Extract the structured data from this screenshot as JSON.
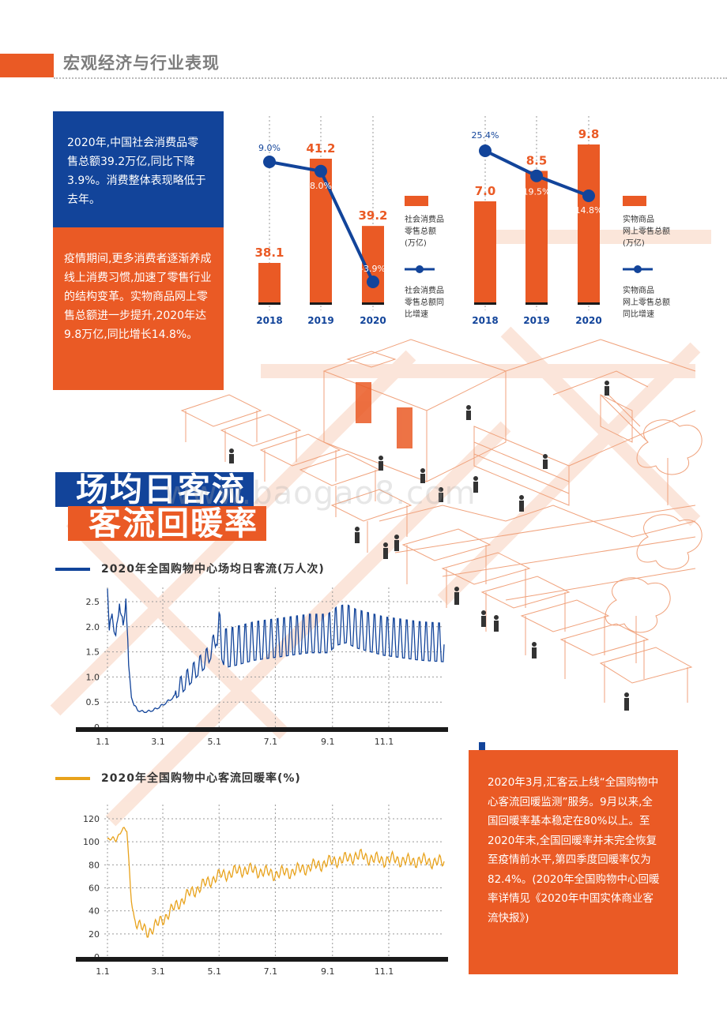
{
  "header": {
    "title": "宏观经济与行业表现"
  },
  "text_blocks": {
    "blue": "2020年,中国社会消费品零售总额39.2万亿,同比下降3.9%。消费整体表现略低于去年。",
    "orange": "疫情期间,更多消费者逐渐养成线上消费习惯,加速了零售行业的结构变革。实物商品网上零售总额进一步提升,2020年达9.8万亿,同比增长14.8%。",
    "right": "2020年3月,汇客云上线“全国购物中心客流回暖监测”服务。9月以来,全国回暖率基本稳定在80%以上。至2020年末,全国回暖率并未完全恢复至疫情前水平,第四季度回暖率仅为82.4%。(2020年全国购物中心回暖率详情见《2020年中国实体商业客流快报》)"
  },
  "section_titles": {
    "line1": "场均日客流",
    "line2": "客流回暖率"
  },
  "watermark": "www.baogao8.com",
  "colors": {
    "orange": "#ea5a25",
    "blue": "#12449a",
    "yellow": "#e8a21b",
    "dark": "#1a1a1a"
  },
  "chart_data": [
    {
      "type": "bar",
      "categories": [
        "2018",
        "2019",
        "2020"
      ],
      "values": [
        38.1,
        41.2,
        39.2
      ],
      "value_labels": [
        "38.1",
        "41.2",
        "39.2"
      ],
      "series_name": "社会消费品零售总额(万亿)",
      "line_series": {
        "name": "社会消费品零售总额同比增速",
        "values": [
          9.0,
          8.0,
          -3.9
        ],
        "labels": [
          "9.0%",
          "8.0%",
          "-3.9%"
        ]
      },
      "legend": [
        "社会消费品零售总额(万亿)",
        "社会消费品零售总额同比增速"
      ],
      "legend_lines": {
        "bar": [
          "社会消费品",
          "零售总额",
          "(万亿)"
        ],
        "line": [
          "社会消费品",
          "零售总额同",
          "比增速"
        ]
      }
    },
    {
      "type": "bar",
      "categories": [
        "2018",
        "2019",
        "2020"
      ],
      "values": [
        7.0,
        8.5,
        9.8
      ],
      "value_labels": [
        "7.0",
        "8.5",
        "9.8"
      ],
      "series_name": "实物商品网上零售总额(万亿)",
      "line_series": {
        "name": "实物商品网上零售总额同比增速",
        "values": [
          25.4,
          19.5,
          14.8
        ],
        "labels": [
          "25.4%",
          "19.5%",
          "14.8%"
        ]
      },
      "legend": [
        "实物商品网上零售总额(万亿)",
        "实物商品网上零售总额同比增速"
      ],
      "legend_lines": {
        "bar": [
          "实物商品",
          "网上零售总额",
          "(万亿)"
        ],
        "line": [
          "实物商品",
          "网上零售总额",
          "同比增速"
        ]
      }
    },
    {
      "type": "line",
      "title": "2020年全国购物中心场均日客流(万人次)",
      "x_ticks": [
        "1.1",
        "3.1",
        "5.1",
        "7.1",
        "9.1",
        "11.1"
      ],
      "y_ticks": [
        "0",
        "0.5",
        "1.0",
        "1.5",
        "2.0",
        "2.5"
      ],
      "ylim": [
        0,
        2.5
      ],
      "x_range": [
        1,
        366
      ],
      "unit": "万人次",
      "series": [
        {
          "name": "场均日客流",
          "anchor_days": [
            1,
            3,
            6,
            10,
            14,
            18,
            21,
            24,
            27,
            30,
            34,
            38,
            45,
            52,
            60,
            70,
            80,
            90,
            100,
            110,
            115,
            120,
            128,
            140,
            160,
            180,
            200,
            220,
            240,
            250,
            260,
            270,
            280,
            300,
            320,
            340,
            366
          ],
          "anchor_values": [
            2.8,
            1.7,
            2.3,
            1.6,
            2.5,
            1.8,
            2.6,
            1.2,
            0.6,
            0.42,
            0.33,
            0.3,
            0.3,
            0.34,
            0.42,
            0.55,
            0.7,
            0.9,
            1.1,
            1.3,
            1.5,
            1.75,
            1.3,
            1.35,
            1.45,
            1.5,
            1.55,
            1.6,
            1.6,
            1.75,
            1.8,
            1.7,
            1.65,
            1.55,
            1.5,
            1.45,
            1.42
          ],
          "weekly_amplitude": 0.65
        }
      ]
    },
    {
      "type": "line",
      "title": "2020年全国购物中心客流回暖率(%)",
      "x_ticks": [
        "1.1",
        "3.1",
        "5.1",
        "7.1",
        "9.1",
        "11.1"
      ],
      "y_ticks": [
        "0",
        "20",
        "40",
        "60",
        "80",
        "100",
        "120"
      ],
      "ylim": [
        0,
        120
      ],
      "x_range": [
        1,
        366
      ],
      "unit": "%",
      "series": [
        {
          "name": "客流回暖率",
          "anchor_days": [
            1,
            6,
            10,
            16,
            22,
            26,
            30,
            35,
            40,
            45,
            52,
            60,
            70,
            80,
            90,
            100,
            110,
            120,
            130,
            140,
            150,
            160,
            170,
            180,
            190,
            200,
            210,
            220,
            230,
            240,
            250,
            260,
            270,
            280,
            290,
            300,
            310,
            320,
            330,
            340,
            350,
            366
          ],
          "anchor_values": [
            100,
            101,
            103,
            111,
            108,
            60,
            33,
            27,
            24,
            22,
            26,
            32,
            40,
            48,
            55,
            60,
            65,
            70,
            72,
            74,
            76,
            75,
            74,
            72,
            73,
            74,
            76,
            78,
            80,
            82,
            84,
            85,
            88,
            87,
            85,
            84,
            85,
            84,
            83,
            84,
            83,
            82
          ],
          "weekly_amplitude": 4.0
        }
      ]
    }
  ]
}
